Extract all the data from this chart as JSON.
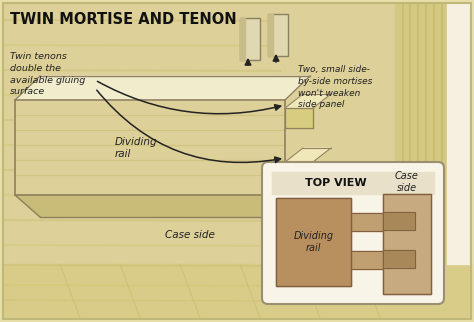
{
  "title": "TWIN MORTISE AND TENON",
  "bg_color": "#e8dfa8",
  "wood_bg": "#d8cc88",
  "wood_stripe1": "#c8bc70",
  "wood_stripe2": "#ddd098",
  "right_panel_color": "#d4c882",
  "right_panel_stripe": "#c0b460",
  "white_strip": "#f5f0e0",
  "rail_front": "#e0d498",
  "rail_top": "#f0e8c0",
  "rail_bottom": "#c0b468",
  "rail_edge": "#908060",
  "tenon_face": "#d8c880",
  "tenon_top": "#f0e8b8",
  "tenon_edge": "#908060",
  "side_panel": "#d8cc88",
  "mortise_dark": "#b09050",
  "ft_color": "#d8cca0",
  "ft_edge": "#888060",
  "ft_shadow": "#c0b078",
  "inset_bg": "#f8f4e8",
  "inset_border": "#a09070",
  "dividing_rail_color": "#b89060",
  "case_side_color": "#c8aa80",
  "tenon_rect_color": "#c0a070",
  "mortise_slot_color": "#a88858",
  "arrow_color": "#222222",
  "label_color": "#222222",
  "top_view_title": "TOP VIEW",
  "ann1": "Twin tenons\ndouble the\navailable gluing\nsurface",
  "ann2": "Two, small side-\nby-side mortises\nwon't weaken\nside panel",
  "lbl_dividing_rail": "Dividing\nrail",
  "lbl_case_side": "Case side",
  "lbl_dividing_rail2": "Dividing\nrail",
  "lbl_case_side2": "Case\nside"
}
